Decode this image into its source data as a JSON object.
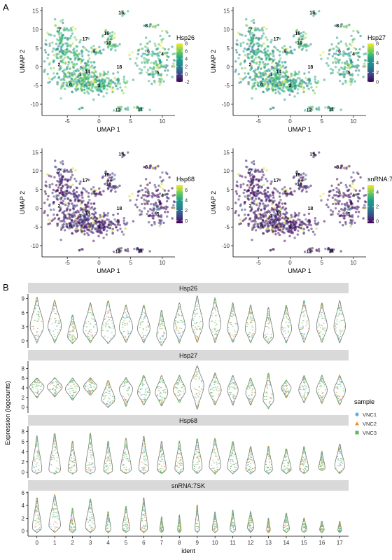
{
  "panel_letters": {
    "a": "A",
    "b": "B"
  },
  "colors": {
    "viridis": [
      "#440154",
      "#482878",
      "#3e4989",
      "#31688e",
      "#26828e",
      "#1f9e89",
      "#35b779",
      "#6ece58",
      "#b5de2b",
      "#fde725"
    ],
    "strip": "#d9d9d9",
    "violin_outline": "#777777",
    "VNC1": "#6baed6",
    "VNC2": "#f28e2b",
    "VNC3": "#5cb85c"
  },
  "chart_data": [
    {
      "type": "scatter",
      "xlabel": "UMAP 1",
      "ylabel": "UMAP 2",
      "xlim": [
        -9,
        12
      ],
      "ylim": [
        -13,
        16
      ],
      "xticks": [
        "-5",
        "0",
        "5",
        "10"
      ],
      "yticks": [
        "-10",
        "-5",
        "0",
        "5",
        "10",
        "15"
      ],
      "color_label": "Hsp26",
      "colorbar_ticks": [
        "8",
        "6",
        "4",
        "2",
        "0",
        "-2"
      ],
      "colorbar_range": [
        -2,
        8
      ],
      "clusters": [
        {
          "label": "0",
          "x": -4.5,
          "y": -4.8
        },
        {
          "label": "1",
          "x": -3.0,
          "y": -2.0
        },
        {
          "label": "2",
          "x": -6.3,
          "y": 0.7
        },
        {
          "label": "3",
          "x": 0.0,
          "y": -5.0
        },
        {
          "label": "4",
          "x": 10.0,
          "y": 3.5
        },
        {
          "label": "5",
          "x": 9.3,
          "y": -1.5
        },
        {
          "label": "6",
          "x": 7.8,
          "y": 4.2
        },
        {
          "label": "7",
          "x": -6.2,
          "y": 10.0
        },
        {
          "label": "8",
          "x": 7.5,
          "y": 11.0
        },
        {
          "label": "9",
          "x": -0.8,
          "y": 4.2
        },
        {
          "label": "10",
          "x": 1.5,
          "y": 6.5
        },
        {
          "label": "11",
          "x": 6.5,
          "y": -11.3
        },
        {
          "label": "12",
          "x": 3.0,
          "y": -11.5
        },
        {
          "label": "14",
          "x": -1.8,
          "y": -1.2
        },
        {
          "label": "15",
          "x": 3.5,
          "y": 14.5
        },
        {
          "label": "16",
          "x": 1.2,
          "y": 9.0
        },
        {
          "label": "17",
          "x": -2.2,
          "y": 7.5
        },
        {
          "label": "18",
          "x": 3.2,
          "y": 0.0
        }
      ]
    },
    {
      "type": "scatter",
      "xlabel": "UMAP 1",
      "ylabel": "UMAP 2",
      "xlim": [
        -9,
        12
      ],
      "ylim": [
        -13,
        16
      ],
      "xticks": [
        "-5",
        "0",
        "5",
        "10"
      ],
      "yticks": [
        "-10",
        "-5",
        "0",
        "5",
        "10",
        "15"
      ],
      "color_label": "Hsp27",
      "colorbar_ticks": [
        "8",
        "6",
        "4",
        "2",
        "0"
      ],
      "colorbar_range": [
        0,
        8
      ],
      "clusters": [
        {
          "label": "0",
          "x": -4.5,
          "y": -4.8
        },
        {
          "label": "1",
          "x": -3.0,
          "y": -2.0
        },
        {
          "label": "2",
          "x": -6.3,
          "y": 0.7
        },
        {
          "label": "3",
          "x": 0.0,
          "y": -5.0
        },
        {
          "label": "4",
          "x": 10.0,
          "y": 3.5
        },
        {
          "label": "5",
          "x": 9.3,
          "y": -1.5
        },
        {
          "label": "6",
          "x": 7.8,
          "y": 4.2
        },
        {
          "label": "7",
          "x": -6.2,
          "y": 10.0
        },
        {
          "label": "8",
          "x": 7.5,
          "y": 11.0
        },
        {
          "label": "9",
          "x": -0.8,
          "y": 4.2
        },
        {
          "label": "10",
          "x": 1.5,
          "y": 6.5
        },
        {
          "label": "11",
          "x": 6.5,
          "y": -11.3
        },
        {
          "label": "12",
          "x": 3.0,
          "y": -11.5
        },
        {
          "label": "14",
          "x": -1.8,
          "y": -1.2
        },
        {
          "label": "15",
          "x": 3.5,
          "y": 14.5
        },
        {
          "label": "16",
          "x": 1.2,
          "y": 9.0
        },
        {
          "label": "17",
          "x": -2.2,
          "y": 7.5
        },
        {
          "label": "18",
          "x": 3.2,
          "y": 0.0
        }
      ]
    },
    {
      "type": "scatter",
      "xlabel": "UMAP 1",
      "ylabel": "UMAP 2",
      "xlim": [
        -9,
        12
      ],
      "ylim": [
        -13,
        16
      ],
      "xticks": [
        "-5",
        "0",
        "5",
        "10"
      ],
      "yticks": [
        "-10",
        "-5",
        "0",
        "5",
        "10",
        "15"
      ],
      "color_label": "Hsp68",
      "colorbar_ticks": [
        "6",
        "4",
        "2",
        "0"
      ],
      "colorbar_range": [
        -0.5,
        7
      ],
      "clusters": [
        {
          "label": "0",
          "x": -4.5,
          "y": -4.8
        },
        {
          "label": "1",
          "x": -3.0,
          "y": -2.0
        },
        {
          "label": "2",
          "x": -6.3,
          "y": 0.7
        },
        {
          "label": "3",
          "x": 0.0,
          "y": -5.0
        },
        {
          "label": "4",
          "x": 10.0,
          "y": 3.5
        },
        {
          "label": "5",
          "x": 9.3,
          "y": -1.5
        },
        {
          "label": "6",
          "x": 7.8,
          "y": 4.2
        },
        {
          "label": "7",
          "x": -6.2,
          "y": 10.0
        },
        {
          "label": "8",
          "x": 7.5,
          "y": 11.0
        },
        {
          "label": "9",
          "x": -0.8,
          "y": 4.2
        },
        {
          "label": "10",
          "x": 1.5,
          "y": 6.5
        },
        {
          "label": "11",
          "x": 6.5,
          "y": -11.3
        },
        {
          "label": "12",
          "x": 3.0,
          "y": -11.5
        },
        {
          "label": "14",
          "x": -1.8,
          "y": -1.2
        },
        {
          "label": "15",
          "x": 3.5,
          "y": 14.5
        },
        {
          "label": "16",
          "x": 1.2,
          "y": 9.0
        },
        {
          "label": "17",
          "x": -2.2,
          "y": 7.5
        },
        {
          "label": "18",
          "x": 3.2,
          "y": 0.0
        }
      ]
    },
    {
      "type": "scatter",
      "xlabel": "UMAP 1",
      "ylabel": "UMAP 2",
      "xlim": [
        -9,
        12
      ],
      "ylim": [
        -13,
        16
      ],
      "xticks": [
        "-5",
        "0",
        "5",
        "10"
      ],
      "yticks": [
        "-10",
        "-5",
        "0",
        "5",
        "10",
        "15"
      ],
      "color_label": "snRNA:7SK",
      "colorbar_ticks": [
        "4",
        "2",
        "0"
      ],
      "colorbar_range": [
        -0.3,
        5
      ],
      "clusters": [
        {
          "label": "0",
          "x": -4.5,
          "y": -4.8
        },
        {
          "label": "1",
          "x": -3.0,
          "y": -2.0
        },
        {
          "label": "2",
          "x": -6.3,
          "y": 0.7
        },
        {
          "label": "3",
          "x": 0.0,
          "y": -5.0
        },
        {
          "label": "4",
          "x": 10.0,
          "y": 3.5
        },
        {
          "label": "5",
          "x": 9.3,
          "y": -1.5
        },
        {
          "label": "6",
          "x": 7.8,
          "y": 4.2
        },
        {
          "label": "7",
          "x": -6.2,
          "y": 10.0
        },
        {
          "label": "8",
          "x": 7.5,
          "y": 11.0
        },
        {
          "label": "9",
          "x": -0.8,
          "y": 4.2
        },
        {
          "label": "10",
          "x": 1.5,
          "y": 6.5
        },
        {
          "label": "11",
          "x": 6.5,
          "y": -11.3
        },
        {
          "label": "12",
          "x": 3.0,
          "y": -11.5
        },
        {
          "label": "14",
          "x": -1.8,
          "y": -1.2
        },
        {
          "label": "15",
          "x": 3.5,
          "y": 14.5
        },
        {
          "label": "16",
          "x": 1.2,
          "y": 9.0
        },
        {
          "label": "17",
          "x": -2.2,
          "y": 7.5
        },
        {
          "label": "18",
          "x": 3.2,
          "y": 0.0
        }
      ]
    },
    {
      "type": "violin",
      "ylabel": "Expression (logcounts)",
      "xlabel": "ident",
      "categories": [
        "0",
        "1",
        "2",
        "3",
        "4",
        "5",
        "6",
        "7",
        "8",
        "9",
        "10",
        "11",
        "12",
        "13",
        "14",
        "15",
        "16",
        "17"
      ],
      "legend": {
        "title": "sample",
        "entries": [
          "VNC1",
          "VNC2",
          "VNC3"
        ],
        "position": "right"
      },
      "facets": [
        {
          "gene": "Hsp26",
          "ylim": [
            -1.5,
            10
          ],
          "yticks": [
            "0",
            "3",
            "6",
            "9"
          ],
          "yticks_values": [
            0,
            3,
            6,
            9
          ],
          "ymin": [
            -0.3,
            -0.3,
            -0.5,
            -0.3,
            -0.5,
            -0.3,
            -0.3,
            -1.0,
            -0.3,
            -0.3,
            -0.3,
            -0.3,
            -0.3,
            -0.5,
            -0.3,
            -0.3,
            -0.3,
            -0.3
          ],
          "ymax": [
            9.2,
            8.5,
            5.5,
            8.0,
            8.5,
            7.5,
            7.5,
            6.5,
            8.0,
            9.5,
            9.0,
            8.0,
            7.5,
            7.0,
            7.5,
            8.5,
            8.0,
            8.5
          ],
          "center": [
            3.0,
            3.0,
            0.8,
            2.2,
            1.5,
            2.8,
            2.5,
            1.0,
            3.0,
            3.5,
            3.5,
            2.5,
            2.5,
            0.8,
            2.5,
            3.0,
            3.0,
            3.0
          ],
          "width": [
            0.75,
            0.75,
            0.55,
            0.8,
            0.8,
            0.75,
            0.7,
            0.55,
            0.65,
            0.65,
            0.65,
            0.6,
            0.6,
            0.55,
            0.6,
            0.6,
            0.6,
            0.65
          ]
        },
        {
          "gene": "Hsp27",
          "ylim": [
            -1.2,
            9.5
          ],
          "yticks": [
            "0",
            "2",
            "4",
            "6",
            "8"
          ],
          "yticks_values": [
            0,
            2,
            4,
            6,
            8
          ],
          "ymin": [
            2.0,
            2.2,
            1.5,
            2.5,
            0.0,
            0.3,
            0.5,
            0.3,
            1.0,
            -0.3,
            0.5,
            0.5,
            0.5,
            -0.2,
            2.0,
            1.0,
            0.8,
            0.5
          ],
          "ymax": [
            6.0,
            6.0,
            6.0,
            6.0,
            5.5,
            6.0,
            6.5,
            6.5,
            6.5,
            8.5,
            7.0,
            6.5,
            6.0,
            7.0,
            5.5,
            6.5,
            6.5,
            6.5
          ],
          "center": [
            4.2,
            4.2,
            3.8,
            4.3,
            1.5,
            3.8,
            3.0,
            3.0,
            3.5,
            4.5,
            3.5,
            3.5,
            3.0,
            1.5,
            4.0,
            3.5,
            3.5,
            3.5
          ],
          "width": [
            0.8,
            0.85,
            0.8,
            0.75,
            0.75,
            0.75,
            0.7,
            0.7,
            0.7,
            0.75,
            0.7,
            0.6,
            0.55,
            0.6,
            0.55,
            0.6,
            0.6,
            0.65
          ]
        },
        {
          "gene": "Hsp68",
          "ylim": [
            -1.2,
            9
          ],
          "yticks": [
            "0",
            "2",
            "4",
            "6",
            "8"
          ],
          "yticks_values": [
            0,
            2,
            4,
            6,
            8
          ],
          "ymin": [
            -0.3,
            -0.3,
            -0.3,
            -0.3,
            -0.3,
            -0.3,
            -0.3,
            -0.3,
            -0.3,
            -0.3,
            -0.3,
            -0.3,
            -0.3,
            -0.3,
            -0.3,
            -0.3,
            0.3,
            -0.3
          ],
          "ymax": [
            7.0,
            7.5,
            6.0,
            7.5,
            6.0,
            6.5,
            7.0,
            6.0,
            6.0,
            6.5,
            6.5,
            6.0,
            5.0,
            5.0,
            4.5,
            5.0,
            4.0,
            5.5
          ],
          "center": [
            0.2,
            0.2,
            0.2,
            0.2,
            0.2,
            0.4,
            0.4,
            0.5,
            0.5,
            0.8,
            1.0,
            0.8,
            0.5,
            0.4,
            0.5,
            0.5,
            0.7,
            1.0
          ],
          "width": [
            0.55,
            0.65,
            0.5,
            0.55,
            0.5,
            0.6,
            0.55,
            0.5,
            0.5,
            0.55,
            0.65,
            0.6,
            0.55,
            0.45,
            0.55,
            0.5,
            0.35,
            0.55
          ]
        },
        {
          "gene": "snRNA:7SK",
          "ylim": [
            -0.8,
            6.2
          ],
          "yticks": [
            "0",
            "2",
            "4",
            "6"
          ],
          "yticks_values": [
            0,
            2,
            4,
            6
          ],
          "ymin": [
            -0.2,
            -0.2,
            -0.2,
            -0.2,
            -0.2,
            -0.2,
            -0.2,
            -0.2,
            -0.2,
            -0.2,
            -0.2,
            -0.2,
            -0.2,
            -0.2,
            -0.2,
            -0.2,
            -0.2,
            -0.2
          ],
          "ymax": [
            5.2,
            5.6,
            3.5,
            5.0,
            3.0,
            3.8,
            5.2,
            2.2,
            2.5,
            4.0,
            3.0,
            3.2,
            3.0,
            2.0,
            2.8,
            2.0,
            1.5,
            1.5
          ],
          "center": [
            0.4,
            0.8,
            0.2,
            0.5,
            0.2,
            0.3,
            0.3,
            0.1,
            0.1,
            0.2,
            0.2,
            0.2,
            0.5,
            0.1,
            0.3,
            0.2,
            0.2,
            0.1
          ],
          "width": [
            0.5,
            0.65,
            0.35,
            0.55,
            0.3,
            0.4,
            0.4,
            0.2,
            0.2,
            0.25,
            0.3,
            0.3,
            0.35,
            0.2,
            0.35,
            0.3,
            0.25,
            0.2
          ]
        }
      ]
    }
  ]
}
